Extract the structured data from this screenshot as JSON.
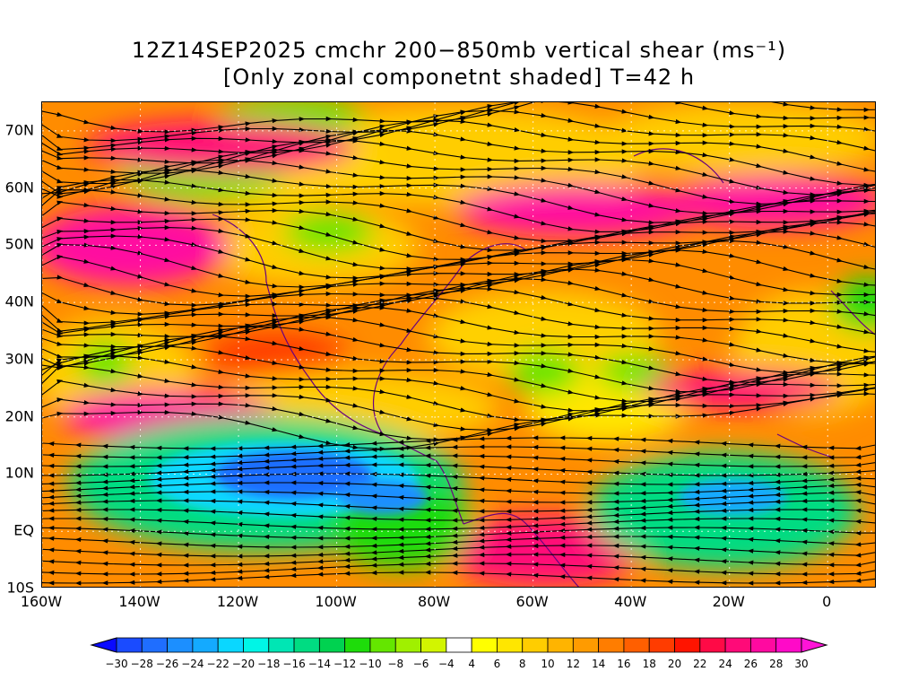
{
  "title": {
    "line1": "12Z14SEP2025 cmchr 200−850mb vertical shear (ms⁻¹)",
    "line2": "[Only zonal componetnt shaded] T=42 h"
  },
  "map": {
    "lon_range": [
      -160,
      10
    ],
    "lat_range": [
      -10,
      75
    ],
    "lat_ticks": [
      {
        "value": 70,
        "label": "70N"
      },
      {
        "value": 60,
        "label": "60N"
      },
      {
        "value": 50,
        "label": "50N"
      },
      {
        "value": 40,
        "label": "40N"
      },
      {
        "value": 30,
        "label": "30N"
      },
      {
        "value": 20,
        "label": "20N"
      },
      {
        "value": 10,
        "label": "10N"
      },
      {
        "value": 0,
        "label": "EQ"
      },
      {
        "value": -10,
        "label": "10S"
      }
    ],
    "lon_ticks": [
      {
        "value": -160,
        "label": "160W"
      },
      {
        "value": -140,
        "label": "140W"
      },
      {
        "value": -120,
        "label": "120W"
      },
      {
        "value": -100,
        "label": "100W"
      },
      {
        "value": -80,
        "label": "80W"
      },
      {
        "value": -60,
        "label": "60W"
      },
      {
        "value": -40,
        "label": "40W"
      },
      {
        "value": -20,
        "label": "20W"
      },
      {
        "value": 0,
        "label": "0"
      }
    ],
    "background_color": "#ff8c00"
  },
  "colorbar": {
    "labels": [
      "-30",
      "-28",
      "-26",
      "-24",
      "-22",
      "-20",
      "-18",
      "-16",
      "-14",
      "-12",
      "-10",
      "-8",
      "-6",
      "-4",
      "4",
      "6",
      "8",
      "10",
      "12",
      "14",
      "16",
      "18",
      "20",
      "22",
      "24",
      "26",
      "28",
      "30"
    ],
    "colors": [
      "#0a0aff",
      "#1a4bff",
      "#1f6eff",
      "#1c8fff",
      "#14aaff",
      "#0ad7ff",
      "#00f5e6",
      "#00e6b4",
      "#00dc82",
      "#00d250",
      "#1edc0a",
      "#64e600",
      "#a0f000",
      "#d2f500",
      "#ffffff",
      "#ffff00",
      "#ffe600",
      "#ffcd00",
      "#ffb400",
      "#ff9b00",
      "#ff7d00",
      "#ff5f00",
      "#ff3c00",
      "#ff1400",
      "#ff0a46",
      "#ff0a78",
      "#ff0aa0",
      "#ff0ac8",
      "#ff14d7"
    ]
  }
}
